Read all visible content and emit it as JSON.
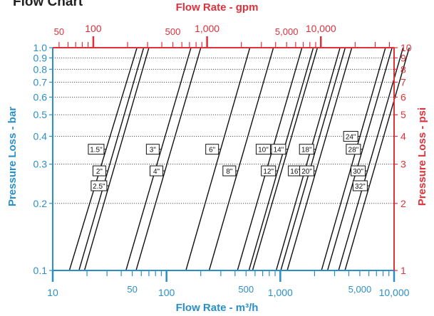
{
  "header": {
    "title": "Flow Chart"
  },
  "chart_data": {
    "type": "line",
    "title": "Flow Chart",
    "xlabel_bottom": "Flow Rate - m³/h",
    "xlabel_top": "Flow Rate - gpm",
    "ylabel_left": "Pressure Loss - bar",
    "ylabel_right": "Pressure Loss - psi",
    "x_scale": "log",
    "y_scale": "log",
    "xlim_bottom": [
      10,
      10000
    ],
    "xlim_top": [
      44,
      44000
    ],
    "ylim_left": [
      0.1,
      1.0
    ],
    "ylim_right": [
      1,
      10
    ],
    "x_major_ticks_bottom": [
      {
        "value": 10,
        "label": "10"
      },
      {
        "value": 100,
        "label": "100"
      },
      {
        "value": 1000,
        "label": "1,000"
      },
      {
        "value": 10000,
        "label": "10,000"
      }
    ],
    "x_minor_labels_bottom": [
      {
        "value": 50,
        "label": "50"
      },
      {
        "value": 500,
        "label": "500"
      },
      {
        "value": 5000,
        "label": "5,000"
      }
    ],
    "x_major_ticks_top": [
      {
        "value": 100,
        "label": "100"
      },
      {
        "value": 1000,
        "label": "1,000"
      },
      {
        "value": 10000,
        "label": "10,000"
      }
    ],
    "x_minor_labels_top": [
      {
        "value": 50,
        "label": "50"
      },
      {
        "value": 500,
        "label": "500"
      },
      {
        "value": 5000,
        "label": "5,000"
      }
    ],
    "y_ticks_left": [
      {
        "value": 0.1,
        "label": "0.1"
      },
      {
        "value": 0.2,
        "label": "0.2"
      },
      {
        "value": 0.3,
        "label": "0.3"
      },
      {
        "value": 0.4,
        "label": "0.4"
      },
      {
        "value": 0.5,
        "label": "0.5"
      },
      {
        "value": 0.6,
        "label": "0.6"
      },
      {
        "value": 0.7,
        "label": "0.7"
      },
      {
        "value": 0.8,
        "label": "0.8"
      },
      {
        "value": 0.9,
        "label": "0.9"
      },
      {
        "value": 1.0,
        "label": "1.0"
      }
    ],
    "y_ticks_right": [
      {
        "value": 1,
        "label": "1"
      },
      {
        "value": 2,
        "label": "2"
      },
      {
        "value": 3,
        "label": "3"
      },
      {
        "value": 4,
        "label": "4"
      },
      {
        "value": 5,
        "label": "5"
      },
      {
        "value": 6,
        "label": "6"
      },
      {
        "value": 7,
        "label": "7"
      },
      {
        "value": 8,
        "label": "8"
      },
      {
        "value": 9,
        "label": "9"
      },
      {
        "value": 10,
        "label": "10"
      }
    ],
    "grid": "horizontal dotted",
    "series": [
      {
        "label": "1.5\"",
        "label_y": 0.35,
        "points": [
          [
            14,
            0.1
          ],
          [
            55,
            1.0
          ]
        ]
      },
      {
        "label": "2\"",
        "label_y": 0.28,
        "points": [
          [
            17,
            0.1
          ],
          [
            63,
            1.0
          ]
        ]
      },
      {
        "label": "2.5\"",
        "label_y": 0.24,
        "points": [
          [
            19,
            0.1
          ],
          [
            70,
            1.0
          ]
        ]
      },
      {
        "label": "3\"",
        "label_y": 0.35,
        "points": [
          [
            44,
            0.1
          ],
          [
            164,
            1.0
          ]
        ]
      },
      {
        "label": "4\"",
        "label_y": 0.28,
        "points": [
          [
            54,
            0.1
          ],
          [
            200,
            1.0
          ]
        ]
      },
      {
        "label": "6\"",
        "label_y": 0.35,
        "points": [
          [
            148,
            0.1
          ],
          [
            540,
            1.0
          ]
        ]
      },
      {
        "label": "8\"",
        "label_y": 0.28,
        "points": [
          [
            237,
            0.1
          ],
          [
            870,
            1.0
          ]
        ]
      },
      {
        "label": "10\"",
        "label_y": 0.35,
        "points": [
          [
            420,
            0.1
          ],
          [
            1550,
            1.0
          ]
        ]
      },
      {
        "label": "12\"",
        "label_y": 0.28,
        "points": [
          [
            530,
            0.1
          ],
          [
            1950,
            1.0
          ]
        ]
      },
      {
        "label": "14\"",
        "label_y": 0.35,
        "points": [
          [
            570,
            0.1
          ],
          [
            2120,
            1.0
          ]
        ]
      },
      {
        "label": "16\"",
        "label_y": 0.28,
        "points": [
          [
            920,
            0.1
          ],
          [
            3350,
            1.0
          ]
        ]
      },
      {
        "label": "18\"",
        "label_y": 0.35,
        "points": [
          [
            1010,
            0.1
          ],
          [
            3720,
            1.0
          ]
        ]
      },
      {
        "label": "20\"",
        "label_y": 0.28,
        "points": [
          [
            1150,
            0.1
          ],
          [
            4250,
            1.0
          ]
        ]
      },
      {
        "label": "24\"",
        "label_y": 0.4,
        "points": [
          [
            2300,
            0.1
          ],
          [
            8400,
            1.0
          ]
        ]
      },
      {
        "label": "28\"",
        "label_y": 0.35,
        "points": [
          [
            2600,
            0.1
          ],
          [
            9600,
            1.0
          ]
        ]
      },
      {
        "label": "30\"",
        "label_y": 0.28,
        "points": [
          [
            3250,
            0.1
          ],
          [
            12000,
            1.0
          ]
        ]
      },
      {
        "label": "32\"",
        "label_y": 0.24,
        "points": [
          [
            3700,
            0.1
          ],
          [
            13600,
            1.0
          ]
        ]
      }
    ]
  },
  "colors": {
    "bar_axis": "#2a8fc8",
    "psi_gpm_axis": "#e0303a",
    "line": "#111111",
    "grid": "#555555"
  }
}
